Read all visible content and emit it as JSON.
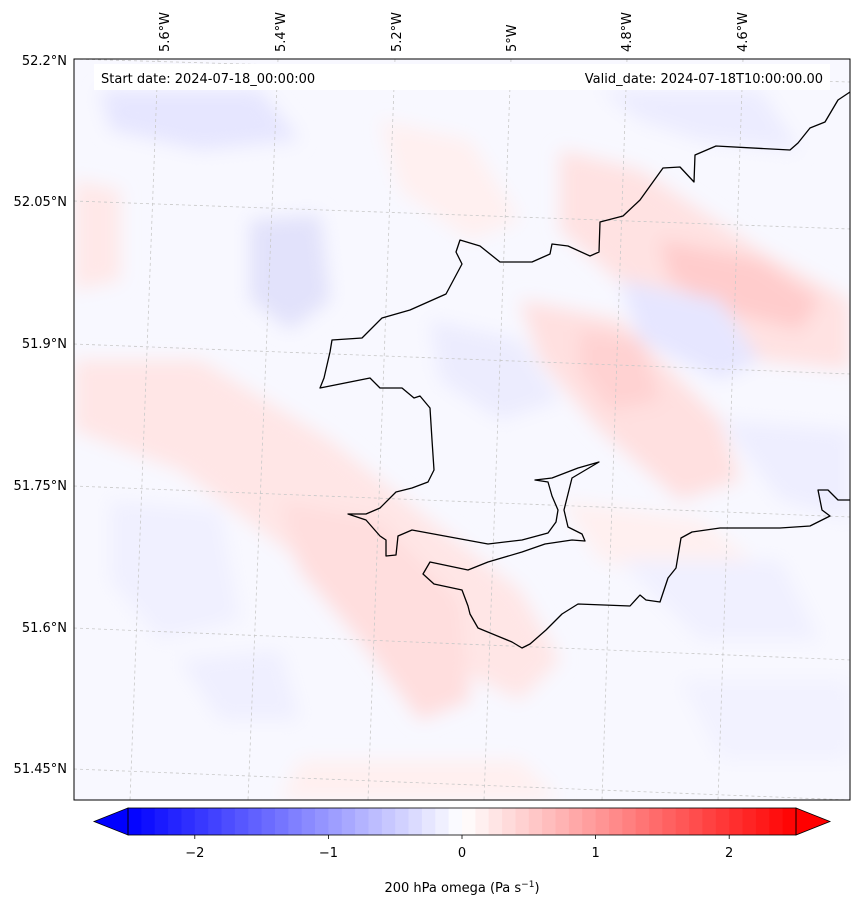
{
  "map": {
    "start_date_text": "Start date: 2024-07-18_00:00:00",
    "valid_date_text": "Valid_date: 2024-07-18T10:00:00.00",
    "lon_labels": [
      "5.6°W",
      "5.4°W",
      "5.2°W",
      "5°W",
      "4.8°W",
      "4.6°W"
    ],
    "lat_labels": [
      "52.2°N",
      "52.05°N",
      "51.9°N",
      "51.75°N",
      "51.6°N",
      "51.45°N"
    ],
    "gridlines": true,
    "coastline_color": "#000000"
  },
  "colorbar": {
    "label_main": "200 hPa omega (Pa s",
    "label_exp": "−1",
    "label_close": ")",
    "ticks": [
      "−2",
      "−1",
      "0",
      "1",
      "2"
    ],
    "tick_values": [
      -2,
      -1,
      0,
      1,
      2
    ],
    "range": [
      -2.5,
      2.5
    ],
    "colormap": "bwr",
    "extend": "both",
    "colors": {
      "negative": "#0000ff",
      "neutral": "#ffffff",
      "positive": "#ff0000"
    }
  }
}
